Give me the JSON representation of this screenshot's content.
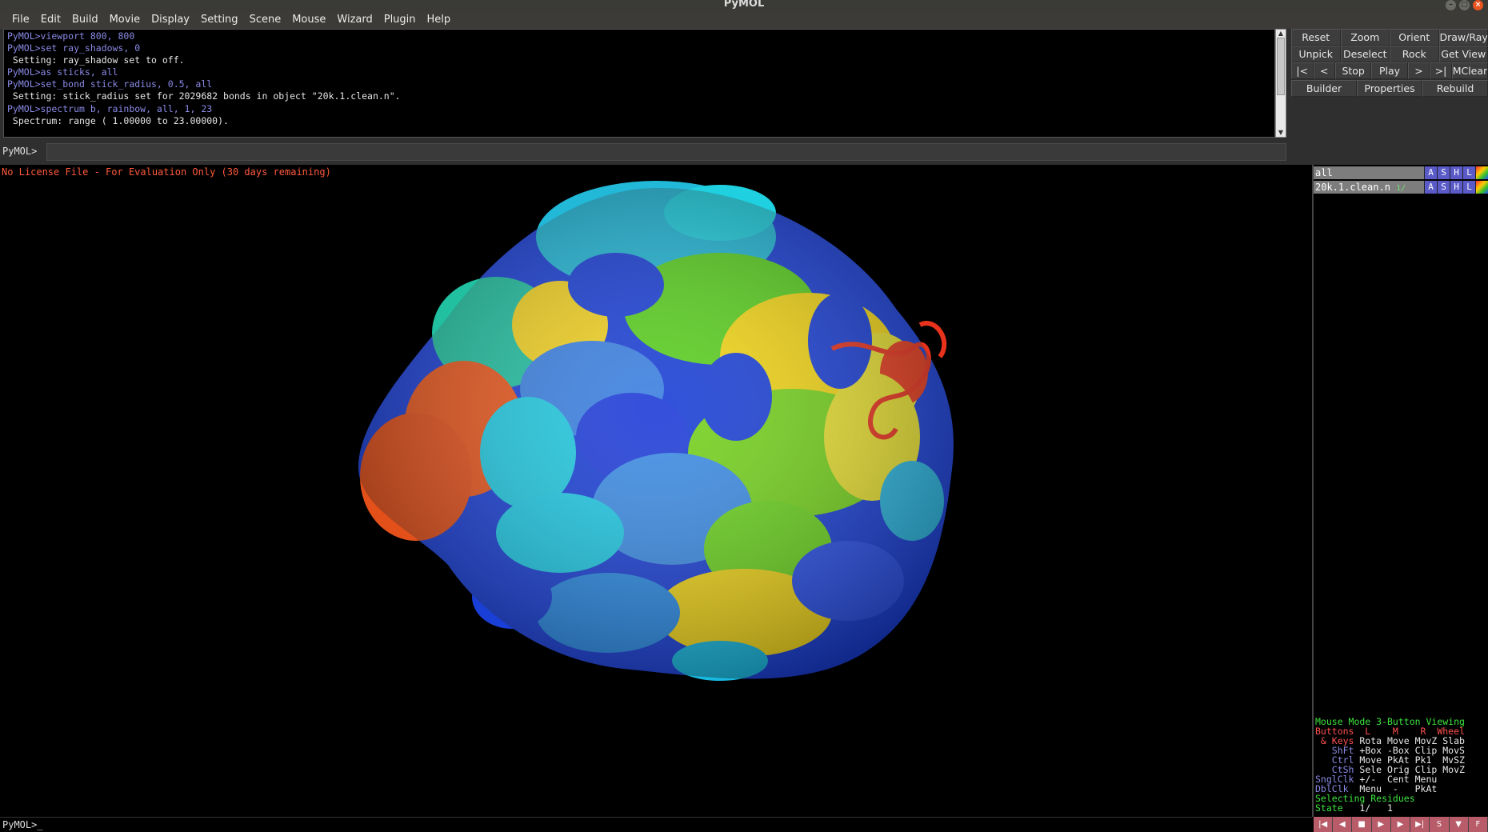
{
  "window": {
    "title": "PyMOL"
  },
  "menu": [
    "File",
    "Edit",
    "Build",
    "Movie",
    "Display",
    "Setting",
    "Scene",
    "Mouse",
    "Wizard",
    "Plugin",
    "Help"
  ],
  "console": {
    "lines": [
      {
        "kind": "cmd",
        "text": "PyMOL>viewport 800, 800"
      },
      {
        "kind": "cmd",
        "text": "PyMOL>set ray_shadows, 0"
      },
      {
        "kind": "out",
        "text": " Setting: ray_shadow set to off."
      },
      {
        "kind": "cmd",
        "text": "PyMOL>as sticks, all"
      },
      {
        "kind": "cmd",
        "text": "PyMOL>set_bond stick_radius, 0.5, all"
      },
      {
        "kind": "out",
        "text": " Setting: stick_radius set for 2029682 bonds in object \"20k.1.clean.n\"."
      },
      {
        "kind": "cmd",
        "text": "PyMOL>spectrum b, rainbow, all, 1, 23"
      },
      {
        "kind": "out",
        "text": " Spectrum: range ( 1.00000 to 23.00000)."
      }
    ]
  },
  "command_line": {
    "prompt": "PyMOL>",
    "value": ""
  },
  "buttons": {
    "row1": [
      "Reset",
      "Zoom",
      "Orient",
      "Draw/Ray"
    ],
    "row2": [
      "Unpick",
      "Deselect",
      "Rock",
      "Get View"
    ],
    "row3": [
      "|<",
      "<",
      "Stop",
      "Play",
      ">",
      ">|",
      "MClear"
    ],
    "row4": [
      "Builder",
      "Properties",
      "Rebuild"
    ]
  },
  "license_text": "No License File - For Evaluation Only (30 days remaining)",
  "objects": [
    {
      "name": "all",
      "state": "",
      "buttons": [
        "A",
        "S",
        "H",
        "L"
      ]
    },
    {
      "name": "20k.1.clean.n",
      "state": "1/",
      "buttons": [
        "A",
        "S",
        "H",
        "L"
      ]
    }
  ],
  "mouse_info": {
    "header": "Mouse Mode 3-Button Viewing",
    "buttons_row": "Buttons  L    M    R  Wheel",
    "rows": [
      {
        "label": " & Keys",
        "values": " Rota Move MovZ Slab"
      },
      {
        "label": "   ShFt",
        "values": " +Box -Box Clip MovS"
      },
      {
        "label": "   Ctrl",
        "values": " Move PkAt Pk1  MvSZ"
      },
      {
        "label": "   CtSh",
        "values": " Sele Orig Clip MovZ"
      },
      {
        "label": "SnglClk",
        "values": " +/-  Cent Menu"
      },
      {
        "label": "DblClk",
        "values": "  Menu  -   PkAt"
      }
    ],
    "selecting": "Selecting Residues",
    "state_label": "State",
    "state_value": "   1/   1"
  },
  "bottom_prompt": "PyMOL>_",
  "movie_controls": [
    "|◀",
    "◀",
    "■",
    "▶",
    "▶",
    "▶|",
    "S",
    "▼",
    "F"
  ],
  "colors": {
    "accent_cmd": "#8a8ae6",
    "license_red": "#ff5a3c",
    "mode_green": "#3ee43e"
  }
}
